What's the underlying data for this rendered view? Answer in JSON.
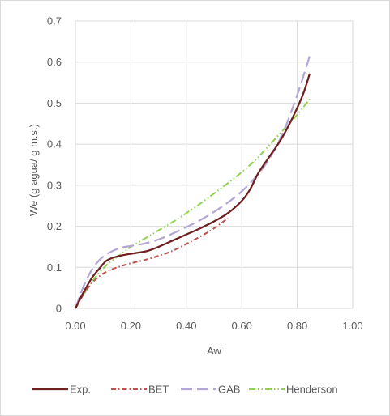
{
  "chart_data": {
    "type": "line",
    "xlabel": "Aw",
    "ylabel": "We (g agua/ g m.s.)",
    "xlim": [
      0,
      1
    ],
    "ylim": [
      0,
      0.7
    ],
    "xticks": [
      "0.00",
      "0.20",
      "0.40",
      "0.60",
      "0.80",
      "1.00"
    ],
    "yticks": [
      "0",
      "0.1",
      "0.2",
      "0.3",
      "0.4",
      "0.5",
      "0.6",
      "0.7"
    ],
    "grid": true,
    "legend_position": "bottom",
    "series": [
      {
        "name": "Exp.",
        "color": "#6e1f1f",
        "dash": "solid",
        "x": [
          0,
          0.03,
          0.06,
          0.09,
          0.11,
          0.13,
          0.16,
          0.19,
          0.22,
          0.26,
          0.3,
          0.35,
          0.4,
          0.45,
          0.5,
          0.55,
          0.6,
          0.63,
          0.66,
          0.7,
          0.74,
          0.78,
          0.82,
          0.845
        ],
        "values": [
          0,
          0.04,
          0.075,
          0.1,
          0.115,
          0.122,
          0.128,
          0.132,
          0.135,
          0.14,
          0.15,
          0.165,
          0.18,
          0.195,
          0.212,
          0.232,
          0.262,
          0.29,
          0.33,
          0.37,
          0.41,
          0.46,
          0.52,
          0.572
        ]
      },
      {
        "name": "BET",
        "color": "#c0504d",
        "dash": "dashdot",
        "x": [
          0,
          0.03,
          0.06,
          0.09,
          0.12,
          0.16,
          0.2,
          0.25,
          0.3,
          0.35,
          0.4,
          0.45,
          0.5,
          0.55
        ],
        "values": [
          0,
          0.035,
          0.062,
          0.08,
          0.092,
          0.102,
          0.11,
          0.118,
          0.128,
          0.14,
          0.157,
          0.175,
          0.195,
          0.22
        ]
      },
      {
        "name": "GAB",
        "color": "#b4a7d6",
        "dash": "longdash",
        "x": [
          0,
          0.03,
          0.06,
          0.09,
          0.12,
          0.16,
          0.2,
          0.25,
          0.3,
          0.35,
          0.4,
          0.45,
          0.5,
          0.55,
          0.6,
          0.65,
          0.7,
          0.75,
          0.8,
          0.845
        ],
        "values": [
          0,
          0.055,
          0.095,
          0.12,
          0.135,
          0.147,
          0.152,
          0.158,
          0.168,
          0.182,
          0.198,
          0.215,
          0.235,
          0.258,
          0.285,
          0.32,
          0.365,
          0.43,
          0.52,
          0.615
        ]
      },
      {
        "name": "Henderson",
        "color": "#92d050",
        "dash": "dashdotdot",
        "x": [
          0,
          0.03,
          0.06,
          0.09,
          0.12,
          0.16,
          0.2,
          0.25,
          0.3,
          0.35,
          0.4,
          0.45,
          0.5,
          0.55,
          0.6,
          0.65,
          0.7,
          0.75,
          0.8,
          0.845
        ],
        "values": [
          0,
          0.035,
          0.065,
          0.09,
          0.11,
          0.13,
          0.15,
          0.17,
          0.19,
          0.21,
          0.232,
          0.255,
          0.28,
          0.305,
          0.332,
          0.362,
          0.398,
          0.435,
          0.472,
          0.51
        ]
      }
    ]
  }
}
